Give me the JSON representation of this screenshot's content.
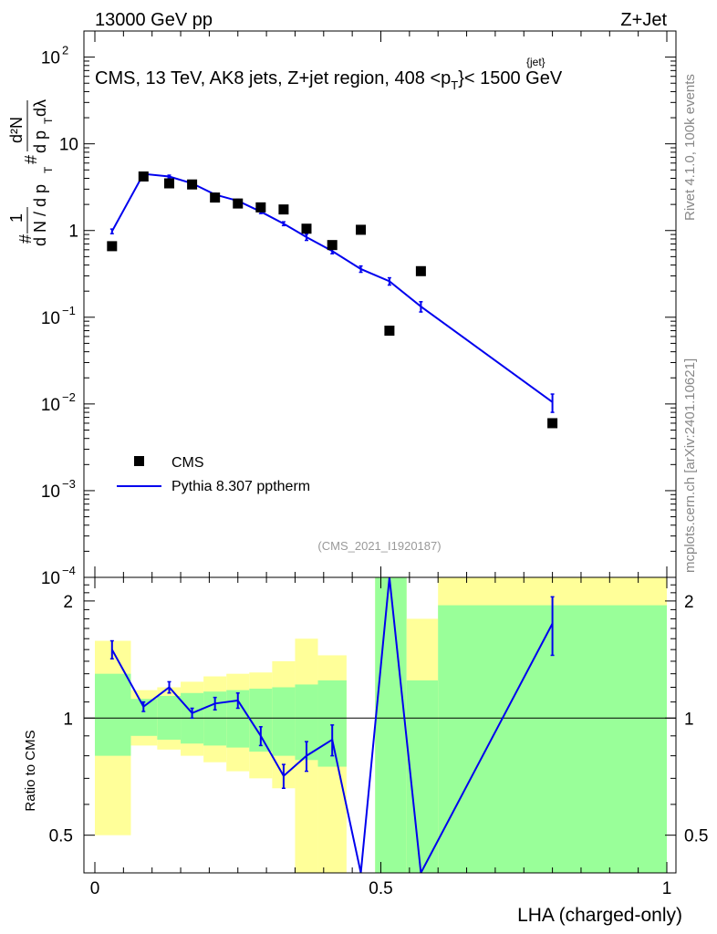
{
  "header": {
    "left": "13000 GeV pp",
    "right": "Z+Jet"
  },
  "side_labels": {
    "rivet": "Rivet 4.1.0,  100k events",
    "mcplots": "mcplots.cern.ch [arXiv:2401.10621]"
  },
  "plot_title": "CMS, 13 TeV, AK8 jets, Z+jet region, 408 <p",
  "plot_title_sup": "{jet}",
  "plot_title_sub": "T",
  "plot_title_end": "}< 1500 GeV",
  "ylabel_main": "1/N dN/dp_T d²N/dp_T dλ",
  "ylabel_ratio": "Ratio to CMS",
  "xlabel": "LHA (charged-only)",
  "analysis_id": "(CMS_2021_I1920187)",
  "legend": {
    "cms": "CMS",
    "mc": "Pythia 8.307 pptherm"
  },
  "colors": {
    "mc": "#0000ee",
    "band_inner": "#99ff99",
    "band_outer": "#ffff99"
  },
  "chart_data": {
    "type": "scatter",
    "x_range": [
      0,
      1
    ],
    "y_range_log": [
      0.0001,
      200
    ],
    "ratio_range": [
      0.4,
      2.3
    ],
    "x_ticks": [
      {
        "v": 0,
        "label": "0"
      },
      {
        "v": 0.5,
        "label": "0.5"
      },
      {
        "v": 1,
        "label": "1"
      }
    ],
    "y_ticks": [
      {
        "v": 100,
        "base": "10",
        "exp": "2"
      },
      {
        "v": 10,
        "base": "10",
        "exp": ""
      },
      {
        "v": 1,
        "base": "1",
        "exp": ""
      },
      {
        "v": 0.1,
        "base": "10",
        "exp": "−1"
      },
      {
        "v": 0.01,
        "base": "10",
        "exp": "−2"
      },
      {
        "v": 0.001,
        "base": "10",
        "exp": "−3"
      },
      {
        "v": 0.0001,
        "base": "10",
        "exp": "−4"
      }
    ],
    "ratio_ticks": [
      {
        "v": 2,
        "label": "2"
      },
      {
        "v": 1,
        "label": "1"
      },
      {
        "v": 0.5,
        "label": "0.5"
      }
    ],
    "cms": [
      {
        "x": 0.03,
        "y": 0.66
      },
      {
        "x": 0.085,
        "y": 4.2
      },
      {
        "x": 0.13,
        "y": 3.5
      },
      {
        "x": 0.17,
        "y": 3.4
      },
      {
        "x": 0.21,
        "y": 2.4
      },
      {
        "x": 0.25,
        "y": 2.05
      },
      {
        "x": 0.29,
        "y": 1.85
      },
      {
        "x": 0.33,
        "y": 1.75
      },
      {
        "x": 0.37,
        "y": 1.05
      },
      {
        "x": 0.415,
        "y": 0.68
      },
      {
        "x": 0.465,
        "y": 1.02
      },
      {
        "x": 0.515,
        "y": 0.07
      },
      {
        "x": 0.57,
        "y": 0.34
      },
      {
        "x": 0.8,
        "y": 0.006
      }
    ],
    "mc": [
      {
        "x": 0.03,
        "y": 0.98,
        "err": 0.06
      },
      {
        "x": 0.085,
        "y": 4.5,
        "err": 0.15
      },
      {
        "x": 0.13,
        "y": 4.2,
        "err": 0.15
      },
      {
        "x": 0.17,
        "y": 3.5,
        "err": 0.12
      },
      {
        "x": 0.21,
        "y": 2.6,
        "err": 0.1
      },
      {
        "x": 0.25,
        "y": 2.2,
        "err": 0.09
      },
      {
        "x": 0.29,
        "y": 1.65,
        "err": 0.08
      },
      {
        "x": 0.33,
        "y": 1.2,
        "err": 0.06
      },
      {
        "x": 0.37,
        "y": 0.84,
        "err": 0.07
      },
      {
        "x": 0.415,
        "y": 0.58,
        "err": 0.04
      },
      {
        "x": 0.465,
        "y": 0.36,
        "err": 0.03
      },
      {
        "x": 0.515,
        "y": 0.26,
        "err": 0.025
      },
      {
        "x": 0.57,
        "y": 0.133,
        "err": 0.018
      },
      {
        "x": 0.8,
        "y": 0.0105,
        "err": 0.0025
      }
    ],
    "ratio": [
      {
        "x": 0.03,
        "y": 1.5,
        "err": 0.08
      },
      {
        "x": 0.085,
        "y": 1.07,
        "err": 0.03
      },
      {
        "x": 0.13,
        "y": 1.2,
        "err": 0.04
      },
      {
        "x": 0.17,
        "y": 1.03,
        "err": 0.03
      },
      {
        "x": 0.21,
        "y": 1.09,
        "err": 0.04
      },
      {
        "x": 0.25,
        "y": 1.11,
        "err": 0.05
      },
      {
        "x": 0.29,
        "y": 0.9,
        "err": 0.05
      },
      {
        "x": 0.33,
        "y": 0.71,
        "err": 0.05
      },
      {
        "x": 0.37,
        "y": 0.8,
        "err": 0.07
      },
      {
        "x": 0.415,
        "y": 0.88,
        "err": 0.08
      },
      {
        "x": 0.465,
        "y": 0.25,
        "err": 0.03
      },
      {
        "x": 0.515,
        "y": 3.7,
        "err": 0.35
      },
      {
        "x": 0.57,
        "y": 0.39,
        "err": 0.05
      },
      {
        "x": 0.8,
        "y": 1.75,
        "err": 0.3
      }
    ],
    "bands": [
      {
        "x0": 0.0,
        "x1": 0.063,
        "in_lo": 0.8,
        "in_hi": 1.3,
        "out_lo": 0.5,
        "out_hi": 1.58
      },
      {
        "x0": 0.063,
        "x1": 0.109,
        "in_lo": 0.9,
        "in_hi": 1.12,
        "out_lo": 0.85,
        "out_hi": 1.18
      },
      {
        "x0": 0.109,
        "x1": 0.15,
        "in_lo": 0.88,
        "in_hi": 1.14,
        "out_lo": 0.83,
        "out_hi": 1.2
      },
      {
        "x0": 0.15,
        "x1": 0.19,
        "in_lo": 0.86,
        "in_hi": 1.16,
        "out_lo": 0.8,
        "out_hi": 1.24
      },
      {
        "x0": 0.19,
        "x1": 0.23,
        "in_lo": 0.85,
        "in_hi": 1.17,
        "out_lo": 0.77,
        "out_hi": 1.28
      },
      {
        "x0": 0.23,
        "x1": 0.27,
        "in_lo": 0.84,
        "in_hi": 1.18,
        "out_lo": 0.73,
        "out_hi": 1.3
      },
      {
        "x0": 0.27,
        "x1": 0.31,
        "in_lo": 0.82,
        "in_hi": 1.19,
        "out_lo": 0.7,
        "out_hi": 1.31
      },
      {
        "x0": 0.31,
        "x1": 0.35,
        "in_lo": 0.8,
        "in_hi": 1.2,
        "out_lo": 0.66,
        "out_hi": 1.4
      },
      {
        "x0": 0.35,
        "x1": 0.39,
        "in_lo": 0.78,
        "in_hi": 1.22,
        "out_lo": 0.4,
        "out_hi": 1.6
      },
      {
        "x0": 0.39,
        "x1": 0.44,
        "in_lo": 0.75,
        "in_hi": 1.25,
        "out_lo": 0.4,
        "out_hi": 1.45
      },
      {
        "x0": 0.44,
        "x1": 0.49,
        "in_lo": 0.4,
        "in_hi": 0.4,
        "out_lo": 0.4,
        "out_hi": 0.4
      },
      {
        "x0": 0.49,
        "x1": 0.545,
        "in_lo": 0.4,
        "in_hi": 2.3,
        "out_lo": 0.4,
        "out_hi": 2.3
      },
      {
        "x0": 0.545,
        "x1": 0.6,
        "in_lo": 0.4,
        "in_hi": 1.25,
        "out_lo": 0.4,
        "out_hi": 1.8
      },
      {
        "x0": 0.6,
        "x1": 1.0,
        "in_lo": 0.4,
        "in_hi": 1.95,
        "out_lo": 0.4,
        "out_hi": 2.3
      }
    ]
  }
}
